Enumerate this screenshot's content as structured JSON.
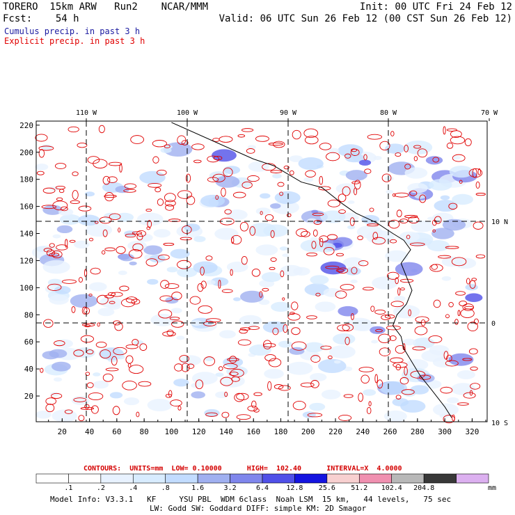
{
  "header": {
    "line1_left": "TORERO  15km ARW   Run2    NCAR/MMM",
    "line1_right": "Init: 00 UTC Fri 24 Feb 12",
    "line2_left": "Fcst:    54 h",
    "line2_right": "Valid: 06 UTC Sun 26 Feb 12 (00 CST Sun 26 Feb 12)"
  },
  "legend": {
    "cumulus": "Cumulus precip. in past 3 h",
    "cumulus_color": "#1a1aa0",
    "explicit": "Explicit precip. in past 3 h",
    "explicit_color": "#e00000"
  },
  "map": {
    "x_ticks": [
      "20",
      "40",
      "60",
      "80",
      "100",
      "120",
      "140",
      "160",
      "180",
      "200",
      "220",
      "240",
      "260",
      "280",
      "300",
      "320"
    ],
    "y_ticks": [
      "20",
      "40",
      "60",
      "80",
      "100",
      "120",
      "140",
      "160",
      "180",
      "200",
      "220"
    ],
    "lon_labels": [
      "110 W",
      "100 W",
      "90 W",
      "80 W",
      "70 W"
    ],
    "lat_labels": [
      "10 N",
      "0",
      "10 S"
    ]
  },
  "contours": {
    "label": "CONTOURS:  UNITS=mm  LOW= 0.10000      HIGH=  102.40      INTERVAL=X  4.0000"
  },
  "colorbar": {
    "levels": [
      ".1",
      ".2",
      ".4",
      ".8",
      "1.6",
      "3.2",
      "6.4",
      "12.8",
      "25.6",
      "51.2",
      "102.4",
      "204.8"
    ],
    "units": "mm",
    "colors": [
      "#ffffff",
      "#ffffff",
      "#e8f2ff",
      "#d8ecff",
      "#c2dcff",
      "#a0b0f0",
      "#7f86ec",
      "#5050e8",
      "#1414e0",
      "#f8d0d0",
      "#f090b0",
      "#b8b8b8",
      "#383838",
      "#dcb0f0"
    ]
  },
  "footer": {
    "line1": "Model Info: V3.3.1   KF     YSU PBL  WDM 6class  Noah LSM  15 km,   44 levels,   75 sec",
    "line2": "LW: Godd SW: Goddard DIFF: simple KM: 2D Smagor"
  }
}
